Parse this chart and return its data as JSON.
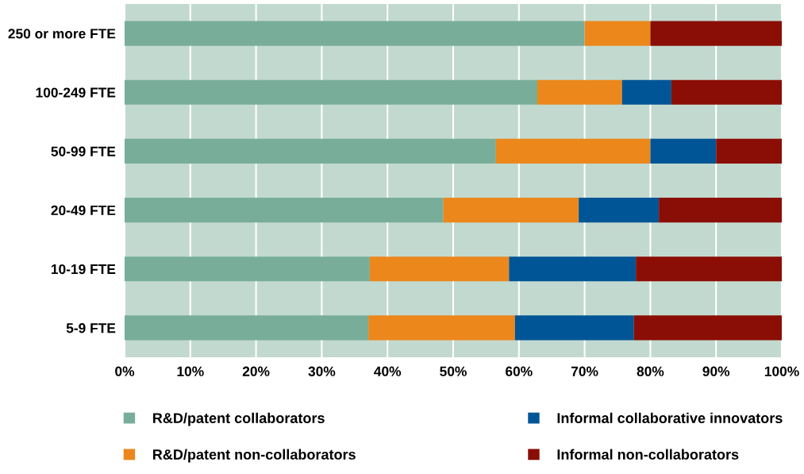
{
  "chart_data": {
    "type": "bar",
    "orientation": "horizontal",
    "stacked": true,
    "categories": [
      "250 or more FTE",
      "100-249 FTE",
      "50-99 FTE",
      "20-49 FTE",
      "10-19 FTE",
      "5-9 FTE"
    ],
    "series": [
      {
        "name": "R&D/patent collaborators",
        "color": "#78ae99",
        "values": [
          70,
          62.8,
          56.5,
          48.5,
          37.3,
          37.1
        ]
      },
      {
        "name": "R&D/patent non-collaborators",
        "color": "#ec871c",
        "values": [
          10,
          12.9,
          23.5,
          20.6,
          21.2,
          22.3
        ]
      },
      {
        "name": "Informal collaborative innovators",
        "color": "#005596",
        "values": [
          0,
          7.5,
          10,
          12.2,
          19.3,
          18.1
        ]
      },
      {
        "name": "Informal non-collaborators",
        "color": "#8a0e05",
        "values": [
          20,
          16.8,
          10,
          18.7,
          22.2,
          22.5
        ]
      }
    ],
    "xlim": [
      0,
      100
    ],
    "xticks": [
      {
        "value": 0,
        "label": "0%"
      },
      {
        "value": 10,
        "label": "10%"
      },
      {
        "value": 20,
        "label": "20%"
      },
      {
        "value": 30,
        "label": "30%"
      },
      {
        "value": 40,
        "label": "40%"
      },
      {
        "value": 50,
        "label": "50%"
      },
      {
        "value": 60,
        "label": "60%"
      },
      {
        "value": 70,
        "label": "70%"
      },
      {
        "value": 80,
        "label": "80%"
      },
      {
        "value": 90,
        "label": "90%"
      },
      {
        "value": 100,
        "label": "100%"
      }
    ],
    "grid": "x",
    "legend": "bottom"
  }
}
